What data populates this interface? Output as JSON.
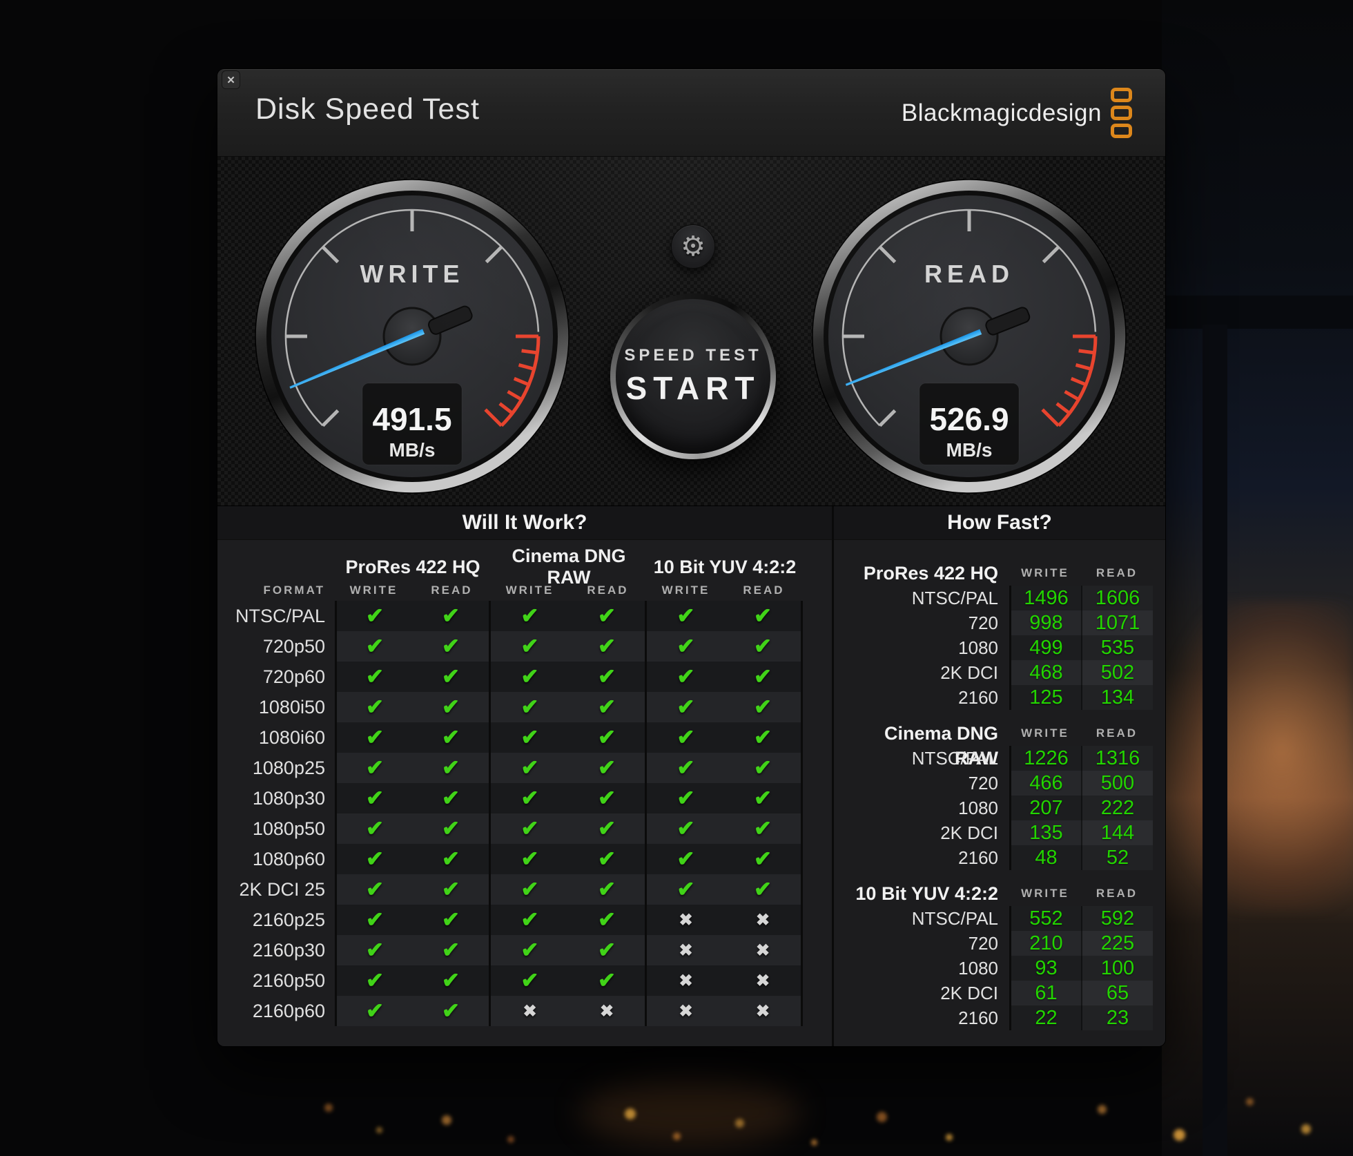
{
  "window": {
    "title": "Disk Speed Test",
    "brand": "Blackmagicdesign",
    "close_glyph": "✕"
  },
  "gauges": {
    "unit": "MB/s",
    "write": {
      "label": "WRITE",
      "value": "491.5"
    },
    "read": {
      "label": "READ",
      "value": "526.9"
    }
  },
  "controls": {
    "gear_glyph": "⚙",
    "start_line1": "SPEED TEST",
    "start_line2": "START"
  },
  "will_it_work": {
    "title": "Will It Work?",
    "format_header": "FORMAT",
    "write_header": "WRITE",
    "read_header": "READ",
    "check_glyph": "✔",
    "cross_glyph": "✖",
    "groups": [
      "ProRes 422 HQ",
      "Cinema DNG RAW",
      "10 Bit YUV 4:2:2"
    ],
    "rows": [
      {
        "format": "NTSC/PAL",
        "results": [
          true,
          true,
          true,
          true,
          true,
          true
        ]
      },
      {
        "format": "720p50",
        "results": [
          true,
          true,
          true,
          true,
          true,
          true
        ]
      },
      {
        "format": "720p60",
        "results": [
          true,
          true,
          true,
          true,
          true,
          true
        ]
      },
      {
        "format": "1080i50",
        "results": [
          true,
          true,
          true,
          true,
          true,
          true
        ]
      },
      {
        "format": "1080i60",
        "results": [
          true,
          true,
          true,
          true,
          true,
          true
        ]
      },
      {
        "format": "1080p25",
        "results": [
          true,
          true,
          true,
          true,
          true,
          true
        ]
      },
      {
        "format": "1080p30",
        "results": [
          true,
          true,
          true,
          true,
          true,
          true
        ]
      },
      {
        "format": "1080p50",
        "results": [
          true,
          true,
          true,
          true,
          true,
          true
        ]
      },
      {
        "format": "1080p60",
        "results": [
          true,
          true,
          true,
          true,
          true,
          true
        ]
      },
      {
        "format": "2K DCI 25",
        "results": [
          true,
          true,
          true,
          true,
          true,
          true
        ]
      },
      {
        "format": "2160p25",
        "results": [
          true,
          true,
          true,
          true,
          false,
          false
        ]
      },
      {
        "format": "2160p30",
        "results": [
          true,
          true,
          true,
          true,
          false,
          false
        ]
      },
      {
        "format": "2160p50",
        "results": [
          true,
          true,
          true,
          true,
          false,
          false
        ]
      },
      {
        "format": "2160p60",
        "results": [
          true,
          true,
          false,
          false,
          false,
          false
        ]
      }
    ]
  },
  "how_fast": {
    "title": "How Fast?",
    "write_header": "WRITE",
    "read_header": "READ",
    "sections": [
      {
        "name": "ProRes 422 HQ",
        "rows": [
          {
            "label": "NTSC/PAL",
            "write": "1496",
            "read": "1606"
          },
          {
            "label": "720",
            "write": "998",
            "read": "1071"
          },
          {
            "label": "1080",
            "write": "499",
            "read": "535"
          },
          {
            "label": "2K DCI",
            "write": "468",
            "read": "502"
          },
          {
            "label": "2160",
            "write": "125",
            "read": "134"
          }
        ]
      },
      {
        "name": "Cinema DNG RAW",
        "rows": [
          {
            "label": "NTSC/PAL",
            "write": "1226",
            "read": "1316"
          },
          {
            "label": "720",
            "write": "466",
            "read": "500"
          },
          {
            "label": "1080",
            "write": "207",
            "read": "222"
          },
          {
            "label": "2K DCI",
            "write": "135",
            "read": "144"
          },
          {
            "label": "2160",
            "write": "48",
            "read": "52"
          }
        ]
      },
      {
        "name": "10 Bit YUV 4:2:2",
        "rows": [
          {
            "label": "NTSC/PAL",
            "write": "552",
            "read": "592"
          },
          {
            "label": "720",
            "write": "210",
            "read": "225"
          },
          {
            "label": "1080",
            "write": "93",
            "read": "100"
          },
          {
            "label": "2K DCI",
            "write": "61",
            "read": "65"
          },
          {
            "label": "2160",
            "write": "22",
            "read": "23"
          }
        ]
      }
    ]
  },
  "colors": {
    "accent_green": "#23d500",
    "check_green": "#41d318",
    "needle_blue": "#2aaaf2",
    "warn_red": "#e8442e",
    "logo_orange": "#dd871b"
  }
}
